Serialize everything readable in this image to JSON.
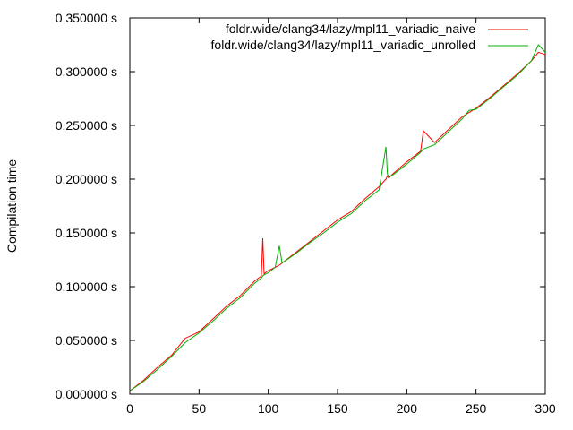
{
  "chart_data": {
    "type": "line",
    "title": "",
    "xlabel": "",
    "ylabel": "Compilation time",
    "xlim": [
      0,
      300
    ],
    "ylim": [
      0,
      0.35
    ],
    "grid": false,
    "legend_position": "top-right",
    "x_ticks": [
      0,
      50,
      100,
      150,
      200,
      250,
      300
    ],
    "x_tick_labels": [
      "0",
      "50",
      "100",
      "150",
      "200",
      "250",
      "300"
    ],
    "y_ticks": [
      0,
      0.05,
      0.1,
      0.15,
      0.2,
      0.25,
      0.3,
      0.35
    ],
    "y_tick_labels": [
      "0.000000 s",
      "0.050000 s",
      "0.100000 s",
      "0.150000 s",
      "0.200000 s",
      "0.250000 s",
      "0.300000 s",
      "0.350000 s"
    ],
    "x": [
      0,
      10,
      20,
      30,
      40,
      50,
      60,
      70,
      80,
      90,
      95,
      96,
      97,
      100,
      105,
      108,
      110,
      120,
      130,
      140,
      150,
      160,
      170,
      180,
      185,
      186,
      187,
      190,
      200,
      210,
      212,
      220,
      230,
      240,
      245,
      250,
      260,
      270,
      280,
      290,
      295,
      300
    ],
    "series": [
      {
        "name": "foldr.wide/clang34/lazy/mpl11_variadic_naive",
        "color": "#ff0000",
        "values": [
          0.003,
          0.013,
          0.025,
          0.036,
          0.052,
          0.058,
          0.07,
          0.082,
          0.092,
          0.105,
          0.11,
          0.145,
          0.112,
          0.115,
          0.118,
          0.12,
          0.122,
          0.132,
          0.142,
          0.152,
          0.162,
          0.17,
          0.182,
          0.193,
          0.2,
          0.203,
          0.201,
          0.205,
          0.216,
          0.226,
          0.245,
          0.234,
          0.246,
          0.258,
          0.262,
          0.266,
          0.276,
          0.287,
          0.298,
          0.31,
          0.318,
          0.316
        ]
      },
      {
        "name": "foldr.wide/clang34/lazy/mpl11_variadic_unrolled",
        "color": "#00b000",
        "values": [
          0.003,
          0.012,
          0.023,
          0.035,
          0.048,
          0.057,
          0.068,
          0.08,
          0.09,
          0.103,
          0.108,
          0.11,
          0.111,
          0.113,
          0.118,
          0.138,
          0.122,
          0.131,
          0.141,
          0.15,
          0.16,
          0.168,
          0.18,
          0.19,
          0.23,
          0.205,
          0.202,
          0.204,
          0.214,
          0.225,
          0.228,
          0.232,
          0.244,
          0.256,
          0.264,
          0.265,
          0.275,
          0.286,
          0.297,
          0.31,
          0.325,
          0.318
        ]
      }
    ]
  }
}
